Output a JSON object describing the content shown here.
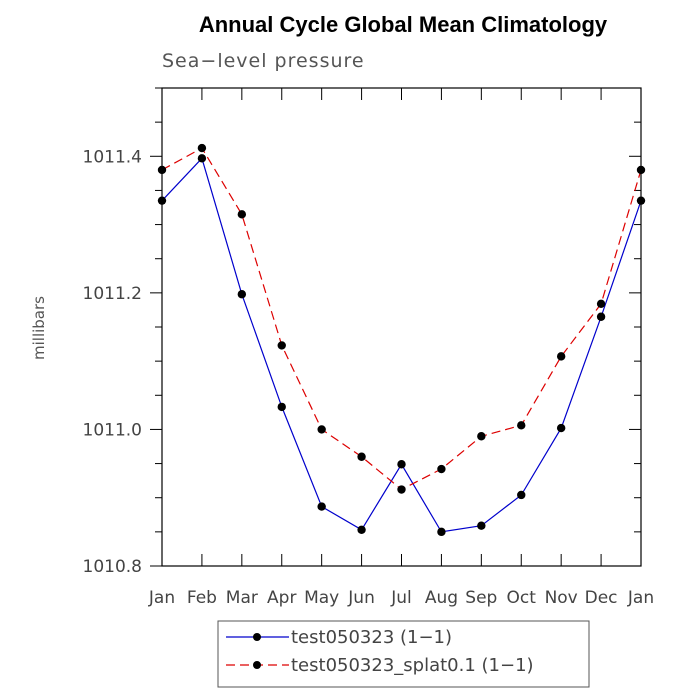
{
  "chart_data": {
    "type": "line",
    "title": "Annual Cycle Global Mean Climatology",
    "subtitle": "Sea−level pressure",
    "xlabel": "",
    "ylabel": "millibars",
    "categories": [
      "Jan",
      "Feb",
      "Mar",
      "Apr",
      "May",
      "Jun",
      "Jul",
      "Aug",
      "Sep",
      "Oct",
      "Nov",
      "Dec",
      "Jan"
    ],
    "ylim": [
      1010.8,
      1011.5
    ],
    "yticks": [
      "1010.8",
      "1011.0",
      "1011.2",
      "1011.4"
    ],
    "legend_position": "bottom",
    "grid": false,
    "series": [
      {
        "name": "test050323 (1−1)",
        "color": "#0000cc",
        "dash": "solid",
        "values": [
          1011.335,
          1011.397,
          1011.198,
          1011.033,
          1010.887,
          1010.853,
          1010.949,
          1010.85,
          1010.859,
          1010.904,
          1011.002,
          1011.165,
          1011.335
        ]
      },
      {
        "name": "test050323_splat0.1 (1−1)",
        "color": "#dd0000",
        "dash": "dashed",
        "values": [
          1011.38,
          1011.412,
          1011.315,
          1011.123,
          1011.0,
          1010.96,
          1010.912,
          1010.942,
          1010.99,
          1011.006,
          1011.107,
          1011.184,
          1011.38
        ]
      }
    ]
  }
}
